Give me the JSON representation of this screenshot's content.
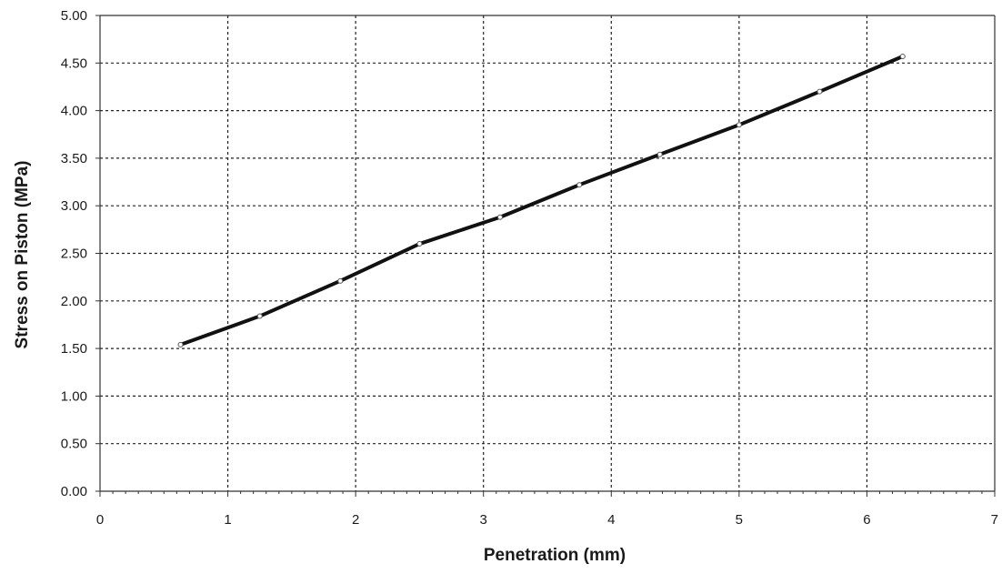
{
  "chart_data": {
    "type": "line",
    "title": "",
    "xlabel": "Penetration (mm)",
    "ylabel": "Stress on Piston (MPa)",
    "xlim": [
      0,
      7
    ],
    "ylim": [
      0,
      5
    ],
    "x_ticks": [
      0,
      1,
      2,
      3,
      4,
      5,
      6,
      7
    ],
    "x_tick_labels": [
      "0",
      "1",
      "2",
      "3",
      "4",
      "5",
      "6",
      "7"
    ],
    "y_ticks": [
      0,
      0.5,
      1,
      1.5,
      2,
      2.5,
      3,
      3.5,
      4,
      4.5,
      5
    ],
    "y_tick_labels": [
      "0.00",
      "0.50",
      "1.00",
      "1.50",
      "2.00",
      "2.50",
      "3.00",
      "3.50",
      "4.00",
      "4.50",
      "5.00"
    ],
    "grid": true,
    "legend": "none",
    "series": [
      {
        "color": "#111111",
        "x": [
          0.63,
          1.25,
          1.88,
          2.5,
          3.13,
          3.75,
          4.38,
          5.0,
          5.63,
          6.28
        ],
        "y": [
          1.54,
          1.84,
          2.21,
          2.6,
          2.88,
          3.22,
          3.54,
          3.85,
          4.2,
          4.57
        ]
      }
    ]
  }
}
